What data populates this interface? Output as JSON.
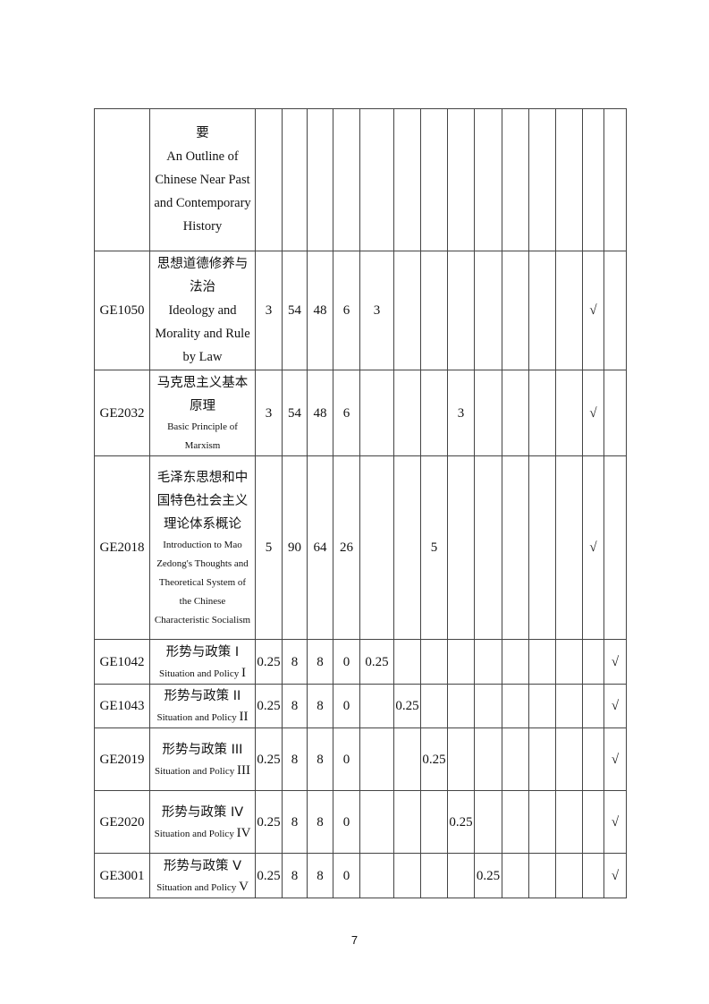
{
  "table": {
    "rows": [
      {
        "code": "",
        "name_cn": "要",
        "name_en": "An Outline of Chinese Near Past and Contemporary History",
        "en_small": false,
        "en_suffix": "",
        "cells": [
          "",
          "",
          "",
          "",
          "",
          "",
          "",
          "",
          "",
          "",
          "",
          "",
          "",
          ""
        ]
      },
      {
        "code": "GE1050",
        "name_cn": "思想道德修养与法治",
        "name_en": "Ideology and Morality and Rule by Law",
        "en_small": false,
        "en_suffix": "",
        "cells": [
          "3",
          "54",
          "48",
          "6",
          "3",
          "",
          "",
          "",
          "",
          "",
          "",
          "",
          "√",
          ""
        ]
      },
      {
        "code": "GE2032",
        "name_cn": "马克思主义基本原理",
        "name_en": "Basic Principle of Marxism",
        "en_small": true,
        "en_suffix": "",
        "cells": [
          "3",
          "54",
          "48",
          "6",
          "",
          "",
          "",
          "3",
          "",
          "",
          "",
          "",
          "√",
          ""
        ]
      },
      {
        "code": "GE2018",
        "name_cn": "毛泽东思想和中国特色社会主义理论体系概论",
        "name_en": "Introduction to Mao Zedong's Thoughts and Theoretical System of the Chinese Characteristic Socialism",
        "en_small": true,
        "en_suffix": "",
        "cells": [
          "5",
          "90",
          "64",
          "26",
          "",
          "",
          "5",
          "",
          "",
          "",
          "",
          "",
          "√",
          ""
        ]
      },
      {
        "code": "GE1042",
        "name_cn": "形势与政策 I",
        "name_en": "Situation and Policy ",
        "en_small": true,
        "en_suffix": "I",
        "cells": [
          "0.25",
          "8",
          "8",
          "0",
          "0.25",
          "",
          "",
          "",
          "",
          "",
          "",
          "",
          "",
          "√"
        ]
      },
      {
        "code": "GE1043",
        "name_cn": "形势与政策 II",
        "name_en": "Situation and Policy ",
        "en_small": true,
        "en_suffix": "II",
        "cells": [
          "0.25",
          "8",
          "8",
          "0",
          "",
          "0.25",
          "",
          "",
          "",
          "",
          "",
          "",
          "",
          "√"
        ]
      },
      {
        "code": "GE2019",
        "name_cn": "形势与政策 III",
        "name_en": "Situation and Policy ",
        "en_small": true,
        "en_suffix": "III",
        "cells": [
          "0.25",
          "8",
          "8",
          "0",
          "",
          "",
          "0.25",
          "",
          "",
          "",
          "",
          "",
          "",
          "√"
        ]
      },
      {
        "code": "GE2020",
        "name_cn": "形势与政策 IV",
        "name_en": "Situation and Policy ",
        "en_small": true,
        "en_suffix": "IV",
        "cells": [
          "0.25",
          "8",
          "8",
          "0",
          "",
          "",
          "",
          "0.25",
          "",
          "",
          "",
          "",
          "",
          "√"
        ]
      },
      {
        "code": "GE3001",
        "name_cn": "形势与政策 V",
        "name_en": "Situation and Policy ",
        "en_small": true,
        "en_suffix": "V",
        "cells": [
          "0.25",
          "8",
          "8",
          "0",
          "",
          "",
          "",
          "",
          "0.25",
          "",
          "",
          "",
          "",
          "√"
        ]
      }
    ]
  },
  "page_number": "7"
}
